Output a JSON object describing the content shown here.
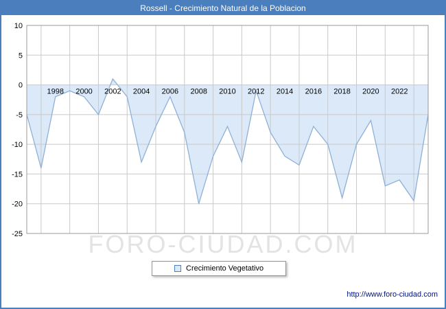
{
  "header": {
    "title": "Rossell - Crecimiento Natural de la Poblacion"
  },
  "legend": {
    "label": "Crecimiento Vegetativo"
  },
  "watermark": "FORO-CIUDAD.COM",
  "footer": {
    "url": "http://www.foro-ciudad.com"
  },
  "colors": {
    "header_bg": "#4a7ebc",
    "area_fill": "#dce9f8",
    "line": "#8eb0d6",
    "grid": "#c9c9c9",
    "plot_border": "#999999",
    "axis_text": "#000000"
  },
  "chart_data": {
    "type": "area",
    "title": "Rossell - Crecimiento Natural de la Poblacion",
    "xlabel": "",
    "ylabel": "",
    "ylim": [
      -25,
      10
    ],
    "ytick_step": 5,
    "baseline": 0,
    "grid": true,
    "legend_position": "bottom",
    "x": [
      1996,
      1997,
      1998,
      1999,
      2000,
      2001,
      2002,
      2003,
      2004,
      2005,
      2006,
      2007,
      2008,
      2009,
      2010,
      2011,
      2012,
      2013,
      2014,
      2015,
      2016,
      2017,
      2018,
      2019,
      2020,
      2021,
      2022,
      2023,
      2024
    ],
    "series": [
      {
        "name": "Crecimiento Vegetativo",
        "values": [
          -5,
          -14,
          -2,
          -1,
          -2,
          -5,
          1,
          -2,
          -13,
          -7,
          -2,
          -8,
          -20,
          -12,
          -7,
          -13,
          -1,
          -8,
          -12,
          -13.5,
          -7,
          -10,
          -19,
          -10,
          -6,
          -17,
          -16,
          -19.5,
          -5
        ]
      }
    ],
    "xtick_labels": [
      1998,
      2000,
      2002,
      2004,
      2006,
      2008,
      2010,
      2012,
      2014,
      2016,
      2018,
      2020,
      2022
    ]
  }
}
